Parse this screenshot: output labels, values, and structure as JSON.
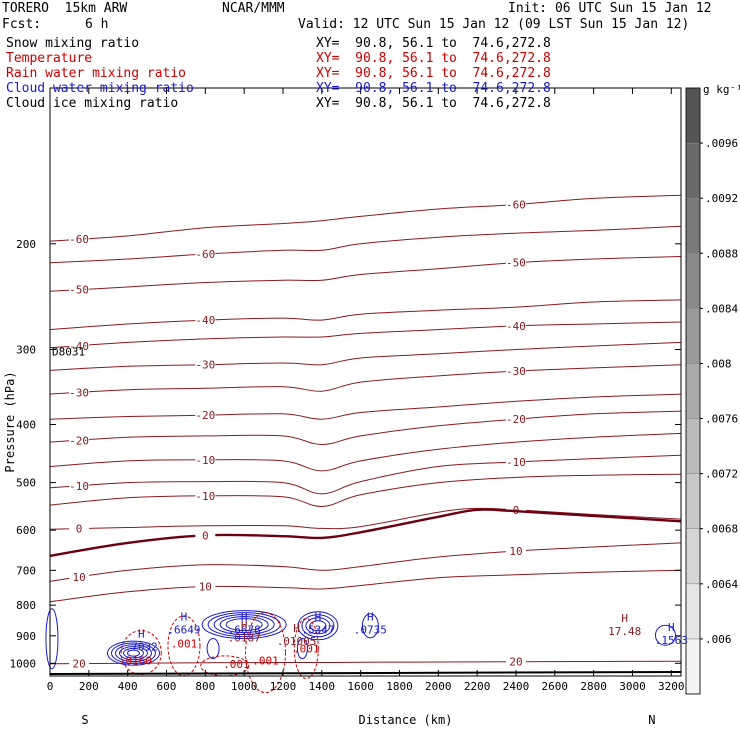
{
  "header": {
    "model": "TORERO  15km ARW",
    "center": "NCAR/MMM",
    "init": "Init: 06 UTC Sun 15 Jan 12",
    "fcst_label": "Fcst:",
    "fcst_value": "6 h",
    "valid": "Valid: 12 UTC Sun 15 Jan 12 (09 LST Sun 15 Jan 12)"
  },
  "fields": [
    {
      "name": "Snow mixing ratio",
      "xy": "",
      "color": "#000000"
    },
    {
      "name": "Temperature",
      "xy": "XY=  90.8, 56.1 to  74.6,272.8",
      "color": "#cc0000"
    },
    {
      "name": "Rain water mixing ratio",
      "xy": "XY=  90.8, 56.1 to  74.6,272.8",
      "color": "#cc0000"
    },
    {
      "name": "Cloud water mixing ratio",
      "xy": "XY=  90.8, 56.1 to  74.6,272.8",
      "color": "#1a1acc"
    },
    {
      "name": "Cloud ice mixing ratio",
      "xy": "XY=  90.8, 56.1 to  74.6,272.8",
      "color": "#000000"
    }
  ],
  "snow_xy": "XY=  90.8, 56.1 to  74.6,272.8",
  "colorbar": {
    "unit": "g kg⁻¹",
    "levels": [
      ".006",
      ".0064",
      ".0068",
      ".0072",
      ".0076",
      ".008",
      ".0084",
      ".0088",
      ".0092",
      ".0096"
    ],
    "shades": [
      "#f4f4f4",
      "#e6e6e6",
      "#d6d6d6",
      "#c8c8c8",
      "#bababa",
      "#aaaaaa",
      "#9a9a9a",
      "#8a8a8a",
      "#7a7a7a",
      "#6a6a6a",
      "#555555"
    ]
  },
  "chart_data": {
    "type": "cross-section contour",
    "xlabel": "Distance (km)",
    "ylabel": "Pressure (hPa)",
    "x_ticks": [
      0,
      200,
      400,
      600,
      800,
      1000,
      1200,
      1400,
      1600,
      1800,
      2000,
      2200,
      2400,
      2600,
      2800,
      3000,
      3200
    ],
    "y_ticks": [
      200,
      300,
      400,
      500,
      600,
      700,
      800,
      900,
      1000
    ],
    "xlim": [
      0,
      3250
    ],
    "ylim": [
      1050,
      110
    ],
    "left_end_label": "S",
    "right_end_label": "N",
    "temperature_contours": [
      {
        "level": -60,
        "x": [
          0,
          400,
          800,
          1200,
          1400,
          1600,
          2000,
          2400,
          2800,
          3250
        ],
        "p": [
          198,
          194,
          188,
          185,
          183,
          180,
          175,
          172,
          168,
          166
        ]
      },
      {
        "level": -60,
        "x": [
          0,
          400,
          800,
          1200,
          1400,
          1600,
          2000,
          2400,
          2800,
          3250
        ],
        "p": [
          215,
          212,
          208,
          205,
          205,
          200,
          195,
          192,
          190,
          187
        ]
      },
      {
        "level": -50,
        "x": [
          0,
          400,
          800,
          1200,
          1400,
          1600,
          2000,
          2400,
          2800,
          3250
        ],
        "p": [
          240,
          236,
          232,
          230,
          230,
          225,
          220,
          215,
          212,
          210
        ]
      },
      {
        "level": -40,
        "x": [
          0,
          400,
          800,
          1200,
          1400,
          1600,
          2000,
          2400,
          2800,
          3250
        ],
        "p": [
          278,
          272,
          268,
          266,
          268,
          262,
          258,
          255,
          250,
          248
        ]
      },
      {
        "level": -40,
        "x": [
          0,
          400,
          800,
          1200,
          1400,
          1600,
          2000,
          2400,
          2800,
          3250
        ],
        "p": [
          298,
          292,
          288,
          286,
          286,
          282,
          278,
          274,
          272,
          270
        ]
      },
      {
        "level": -30,
        "x": [
          0,
          400,
          800,
          1200,
          1400,
          1600,
          2000,
          2400,
          2800,
          3250
        ],
        "p": [
          325,
          320,
          318,
          316,
          318,
          310,
          305,
          300,
          296,
          292
        ]
      },
      {
        "level": -30,
        "x": [
          0,
          400,
          800,
          1200,
          1400,
          1600,
          2000,
          2400,
          2800,
          3250
        ],
        "p": [
          356,
          350,
          348,
          346,
          352,
          340,
          332,
          326,
          322,
          318
        ]
      },
      {
        "level": -20,
        "x": [
          0,
          400,
          800,
          1200,
          1400,
          1600,
          2000,
          2400,
          2800,
          3250
        ],
        "p": [
          392,
          388,
          386,
          384,
          392,
          382,
          374,
          366,
          360,
          356
        ]
      },
      {
        "level": -20,
        "x": [
          0,
          400,
          800,
          1200,
          1400,
          1600,
          2000,
          2400,
          2800,
          3250
        ],
        "p": [
          428,
          420,
          418,
          418,
          432,
          418,
          402,
          392,
          384,
          380
        ]
      },
      {
        "level": -10,
        "x": [
          0,
          400,
          800,
          1200,
          1400,
          1600,
          2000,
          2400,
          2800,
          3250
        ],
        "p": [
          470,
          460,
          458,
          460,
          478,
          460,
          440,
          428,
          420,
          414
        ]
      },
      {
        "level": -10,
        "x": [
          0,
          400,
          800,
          1200,
          1400,
          1600,
          2000,
          2400,
          2800,
          3250
        ],
        "p": [
          510,
          500,
          498,
          500,
          522,
          498,
          470,
          462,
          456,
          450
        ]
      },
      {
        "level": -10,
        "x": [
          0,
          400,
          800,
          1200,
          1400,
          1600,
          2000,
          2400,
          2800,
          3250
        ],
        "p": [
          545,
          530,
          526,
          528,
          548,
          524,
          500,
          490,
          486,
          484
        ]
      },
      {
        "level": 0,
        "x": [
          0,
          400,
          800,
          1200,
          1400,
          1600,
          2000,
          2200,
          2400,
          2800,
          3250
        ],
        "p": [
          598,
          594,
          590,
          590,
          596,
          592,
          560,
          552,
          555,
          565,
          575
        ]
      },
      {
        "level": 0,
        "x": [
          0,
          400,
          800,
          1200,
          1400,
          1600,
          2000,
          2200,
          2400,
          2800,
          3250
        ],
        "p": [
          662,
          630,
          612,
          614,
          618,
          605,
          570,
          555,
          558,
          568,
          580
        ]
      },
      {
        "level": 10,
        "x": [
          0,
          400,
          800,
          1200,
          1400,
          1600,
          2000,
          2400,
          2800,
          3250
        ],
        "p": [
          730,
          700,
          685,
          690,
          700,
          690,
          665,
          650,
          640,
          630
        ]
      },
      {
        "level": 10,
        "x": [
          0,
          400,
          800,
          1200,
          1400,
          1600,
          2000,
          2400,
          2800,
          3250
        ],
        "p": [
          790,
          760,
          745,
          748,
          752,
          742,
          720,
          712,
          705,
          700
        ]
      },
      {
        "level": 20,
        "x": [
          0,
          400,
          800,
          1200,
          1400,
          1600,
          2000,
          2400,
          2800,
          3250
        ],
        "p": [
          1002,
          1000,
          998,
          997,
          997,
          996,
          995,
          994,
          993,
          992
        ]
      }
    ],
    "highs": [
      {
        "label": "H",
        "value": "17.48",
        "x": 2960,
        "p": 867
      },
      {
        "label": "H",
        "value": ".6678",
        "x": 1000,
        "p": 862
      },
      {
        "label": "H",
        "value": ".5347",
        "x": 1380,
        "p": 862
      },
      {
        "label": "H",
        "value": ".0735",
        "x": 1650,
        "p": 862
      },
      {
        "label": "H",
        "value": ".7032",
        "x": 470,
        "p": 920
      },
      {
        "label": "H",
        "value": ".01005",
        "x": 1270,
        "p": 900
      },
      {
        "label": "H",
        "value": ".0187",
        "x": 1000,
        "p": 888
      },
      {
        "label": "H",
        "value": ".1563",
        "x": 3200,
        "p": 898
      },
      {
        "label": "H",
        "value": ".6649",
        "x": 690,
        "p": 862
      }
    ],
    "rain_labels": [
      {
        "value": ".001",
        "x": 690,
        "p": 942
      },
      {
        "value": ".001",
        "x": 1110,
        "p": 1005
      },
      {
        "value": ".001",
        "x": 1320,
        "p": 960
      },
      {
        "value": ".0160",
        "x": 440,
        "p": 1005
      },
      {
        "value": ".001",
        "x": 960,
        "p": 1018
      }
    ],
    "station": "D8031"
  }
}
